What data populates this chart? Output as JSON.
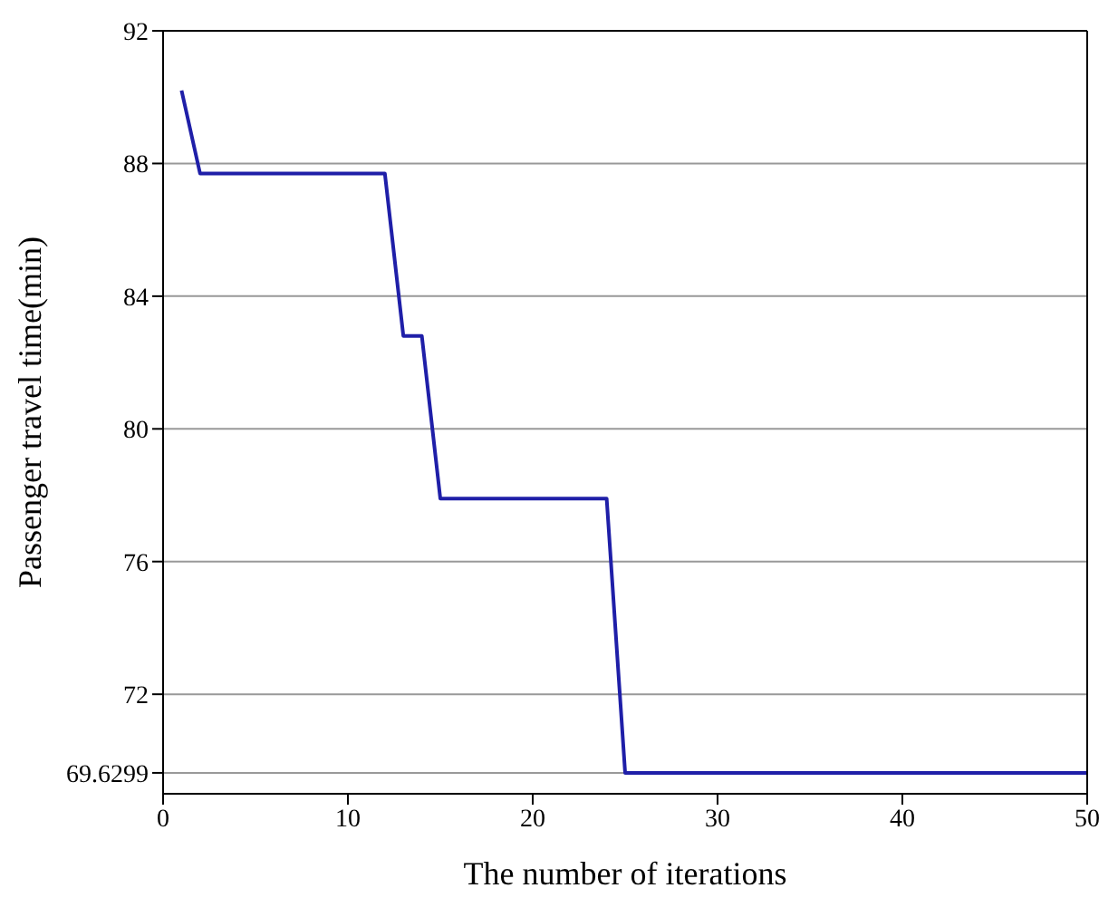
{
  "chart_data": {
    "type": "line",
    "xlabel": "The number of iterations",
    "ylabel": "Passenger travel time(min)",
    "x": [
      1,
      2,
      12,
      13,
      14,
      15,
      24,
      25,
      50
    ],
    "series": [
      {
        "color": "#1f1fa8",
        "values": [
          90.2,
          87.7,
          87.7,
          82.8,
          82.8,
          77.9,
          77.9,
          69.6299,
          69.6299
        ]
      }
    ],
    "xlim": [
      0,
      50
    ],
    "xticks": [
      0,
      10,
      20,
      30,
      40,
      50
    ],
    "ylim": [
      69,
      92
    ],
    "yticks": [
      69.6299,
      72,
      76,
      80,
      84,
      88,
      92
    ],
    "grid": "y",
    "legend": false,
    "marker": "none",
    "line_style": "solid"
  }
}
